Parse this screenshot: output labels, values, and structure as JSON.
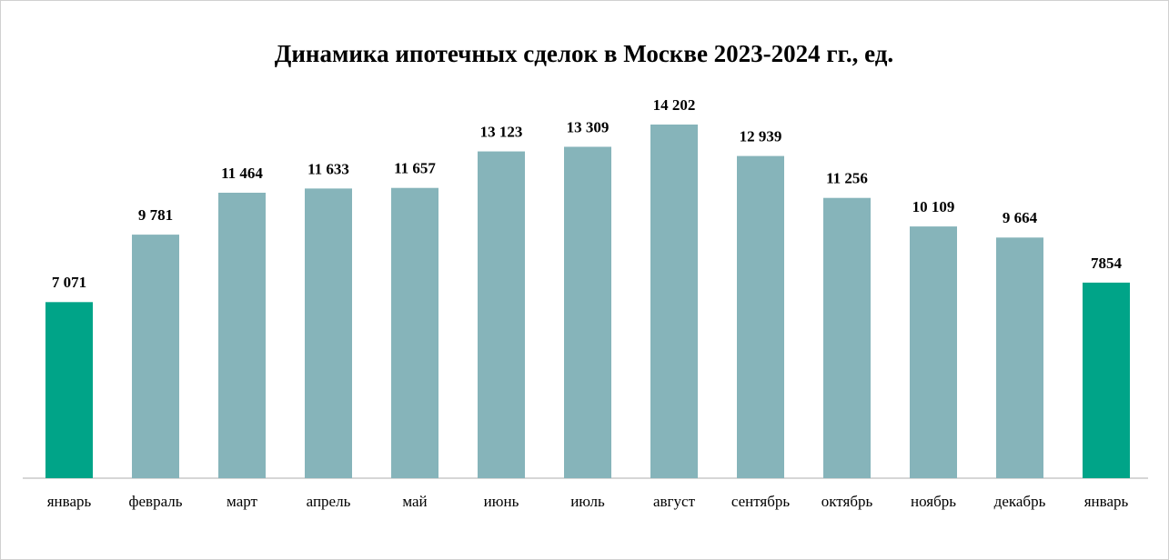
{
  "chart_data": {
    "type": "bar",
    "title": "Динамика ипотечных сделок в Москве 2023-2024 гг., ед.",
    "categories": [
      "январь",
      "февраль",
      "март",
      "апрель",
      "май",
      "июнь",
      "июль",
      "август",
      "сентябрь",
      "октябрь",
      "ноябрь",
      "декабрь",
      "январь"
    ],
    "values": [
      7071,
      9781,
      11464,
      11633,
      11657,
      13123,
      13309,
      14202,
      12939,
      11256,
      10109,
      9664,
      7854
    ],
    "value_labels": [
      "7 071",
      "9 781",
      "11 464",
      "11 633",
      "11 657",
      "13 123",
      "13 309",
      "14 202",
      "12 939",
      "11 256",
      "10 109",
      "9 664",
      "7854"
    ],
    "colors": [
      "#00a488",
      "#86b4ba",
      "#86b4ba",
      "#86b4ba",
      "#86b4ba",
      "#86b4ba",
      "#86b4ba",
      "#86b4ba",
      "#86b4ba",
      "#86b4ba",
      "#86b4ba",
      "#86b4ba",
      "#00a488"
    ]
  }
}
